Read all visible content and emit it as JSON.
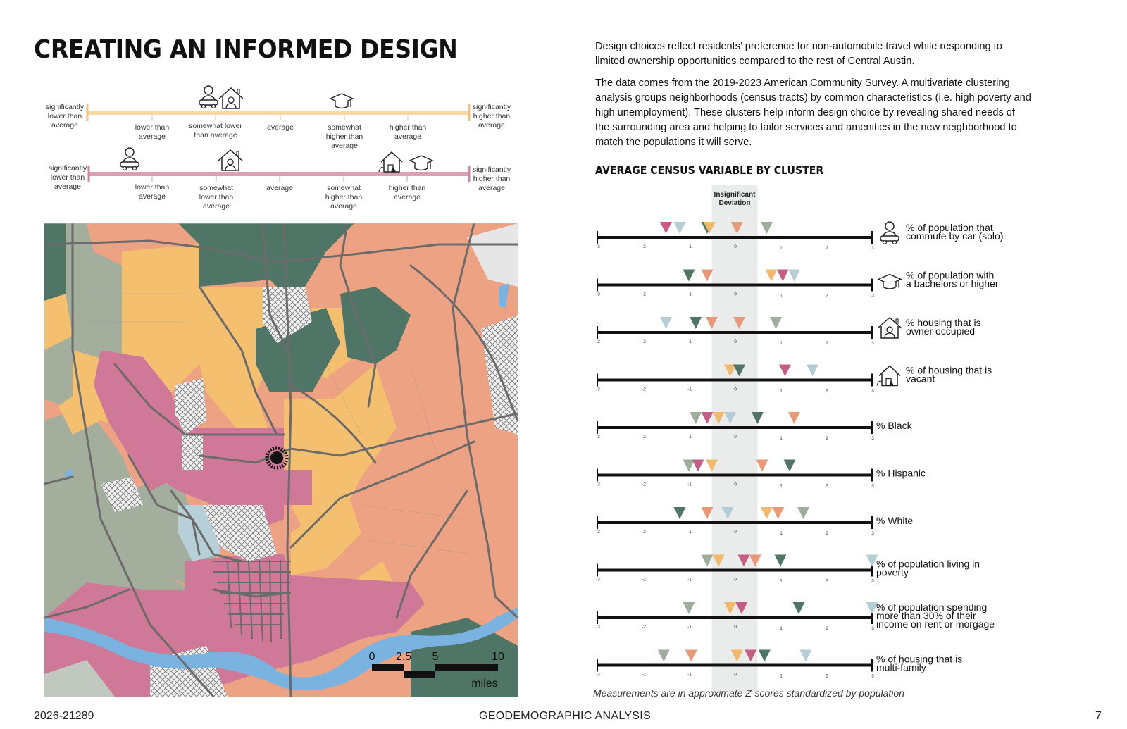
{
  "title": "CREATING AN INFORMED DESIGN",
  "intro": {
    "p1": "Design choices reflect residents’ preference for non-automobile travel while responding to limited ownership opportunities compared to the rest of Central Austin.",
    "p2": "The data comes from the 2019-2023 American Community Survey. A multivariate clustering analysis groups neighborhoods (census tracts) by common characteristics (i.e. high poverty and high unemployment). These clusters help inform design choice by revealing shared needs of the surrounding area and helping to tailor services and amenities in the new neighborhood to match the populations it will serve."
  },
  "scales": {
    "top": {
      "color": "#f7d9a8",
      "end_left": [
        "significantly",
        "lower than",
        "average"
      ],
      "end_right": [
        "significantly",
        "higher than",
        "average"
      ],
      "labels": [
        [
          "lower than",
          "average"
        ],
        [
          "somewhat lower",
          "than average"
        ],
        [
          "average"
        ],
        [
          "somewhat",
          "higher than",
          "average"
        ],
        [
          "higher than",
          "average"
        ]
      ]
    },
    "bottom": {
      "color": "#d8a0b4",
      "end_left": [
        "significantly",
        "lower than",
        "average"
      ],
      "end_right": [
        "significantly",
        "higher than",
        "average"
      ],
      "labels": [
        [
          "lower than",
          "average"
        ],
        [
          "somewhat",
          "lower than",
          "average"
        ],
        [
          "average"
        ],
        [
          "somewhat",
          "higher than",
          "average"
        ],
        [
          "higher than",
          "average"
        ]
      ]
    }
  },
  "map": {
    "scale_labels": [
      "0",
      "2.5",
      "5",
      "10"
    ],
    "scale_unit": "miles",
    "colors": {
      "salmon": "#eda383",
      "yellow": "#f4c070",
      "green": "#4e7565",
      "sage": "#a3ae9c",
      "pink": "#cf7898",
      "lightblue": "#b7cfd8",
      "water": "#7ab2e0",
      "road": "#6b6b6b"
    }
  },
  "cluster_colors": {
    "pink": "#c45e84",
    "salmon": "#e89a78",
    "yellow": "#f2b86e",
    "green": "#4f7565",
    "sage": "#9fad9c",
    "lightblue": "#b5cdd5"
  },
  "chart_data": {
    "type": "scatter",
    "title": "AVERAGE CENSUS VARIABLE BY CLUSTER",
    "band_label": [
      "Insignificant",
      "Deviation"
    ],
    "band_range": [
      -0.5,
      0.5
    ],
    "xlim": [
      -3,
      3
    ],
    "ticks": [
      "-3",
      "-2",
      "-1",
      "0",
      "1",
      "2",
      "3"
    ],
    "note": "Measurements are in approximate Z-scores standardized by population",
    "rows": [
      {
        "label": [
          "% of population that",
          "commute by car (solo)"
        ],
        "icon": "car-commuter-icon",
        "markers": [
          {
            "c": "pink",
            "v": -1.5
          },
          {
            "c": "lightblue",
            "v": -1.2
          },
          {
            "c": "green",
            "v": -0.6
          },
          {
            "c": "yellow",
            "v": -0.55
          },
          {
            "c": "salmon",
            "v": 0.05
          },
          {
            "c": "sage",
            "v": 0.7
          }
        ]
      },
      {
        "label": [
          "% of population with",
          "a bachelors or higher"
        ],
        "icon": "graduation-cap-icon",
        "markers": [
          {
            "c": "green",
            "v": -1.0
          },
          {
            "c": "salmon",
            "v": -0.6
          },
          {
            "c": "yellow",
            "v": 0.8
          },
          {
            "c": "pink",
            "v": 1.05
          },
          {
            "c": "lightblue",
            "v": 1.3
          }
        ]
      },
      {
        "label": [
          "% housing that is",
          "owner occupied"
        ],
        "icon": "owner-house-icon",
        "markers": [
          {
            "c": "lightblue",
            "v": -1.5
          },
          {
            "c": "green",
            "v": -0.85
          },
          {
            "c": "salmon",
            "v": -0.5
          },
          {
            "c": "salmon",
            "v": 0.1
          },
          {
            "c": "sage",
            "v": 0.9
          }
        ]
      },
      {
        "label": [
          "% of housing that is",
          "vacant"
        ],
        "icon": "vacant-house-icon",
        "markers": [
          {
            "c": "yellow",
            "v": -0.1
          },
          {
            "c": "green",
            "v": 0.1
          },
          {
            "c": "pink",
            "v": 1.1
          },
          {
            "c": "lightblue",
            "v": 1.7
          }
        ]
      },
      {
        "label": [
          "% Black"
        ],
        "icon": "",
        "markers": [
          {
            "c": "sage",
            "v": -0.85
          },
          {
            "c": "pink",
            "v": -0.6
          },
          {
            "c": "yellow",
            "v": -0.35
          },
          {
            "c": "lightblue",
            "v": -0.1
          },
          {
            "c": "green",
            "v": 0.5
          },
          {
            "c": "salmon",
            "v": 1.3
          }
        ]
      },
      {
        "label": [
          "% Hispanic"
        ],
        "icon": "",
        "markers": [
          {
            "c": "sage",
            "v": -1.0
          },
          {
            "c": "pink",
            "v": -0.8
          },
          {
            "c": "yellow",
            "v": -0.5
          },
          {
            "c": "salmon",
            "v": 0.6
          },
          {
            "c": "green",
            "v": 1.2
          }
        ]
      },
      {
        "label": [
          "% White"
        ],
        "icon": "",
        "markers": [
          {
            "c": "green",
            "v": -1.2
          },
          {
            "c": "salmon",
            "v": -0.6
          },
          {
            "c": "lightblue",
            "v": -0.15
          },
          {
            "c": "yellow",
            "v": 0.7
          },
          {
            "c": "salmon",
            "v": 0.95
          },
          {
            "c": "sage",
            "v": 1.5
          }
        ]
      },
      {
        "label": [
          "% of population living in",
          "poverty"
        ],
        "icon": "",
        "markers": [
          {
            "c": "sage",
            "v": -0.6
          },
          {
            "c": "yellow",
            "v": -0.35
          },
          {
            "c": "pink",
            "v": 0.2
          },
          {
            "c": "salmon",
            "v": 0.45
          },
          {
            "c": "green",
            "v": 1.0
          },
          {
            "c": "lightblue",
            "v": 3.0
          }
        ]
      },
      {
        "label": [
          "% of population spending",
          "more than 30% of their",
          "income on rent or morgage"
        ],
        "icon": "",
        "markers": [
          {
            "c": "sage",
            "v": -1.0
          },
          {
            "c": "yellow",
            "v": -0.1
          },
          {
            "c": "pink",
            "v": 0.15
          },
          {
            "c": "green",
            "v": 1.4
          },
          {
            "c": "lightblue",
            "v": 3.0
          }
        ]
      },
      {
        "label": [
          "% of housing that is",
          "multi-family"
        ],
        "icon": "",
        "markers": [
          {
            "c": "sage",
            "v": -1.55
          },
          {
            "c": "salmon",
            "v": -0.95
          },
          {
            "c": "yellow",
            "v": 0.05
          },
          {
            "c": "pink",
            "v": 0.35
          },
          {
            "c": "green",
            "v": 0.65
          },
          {
            "c": "lightblue",
            "v": 1.55
          }
        ]
      }
    ]
  },
  "footer": {
    "left": "2026-21289",
    "center": "GEODEMOGRAPHIC ANALYSIS",
    "right": "7"
  }
}
